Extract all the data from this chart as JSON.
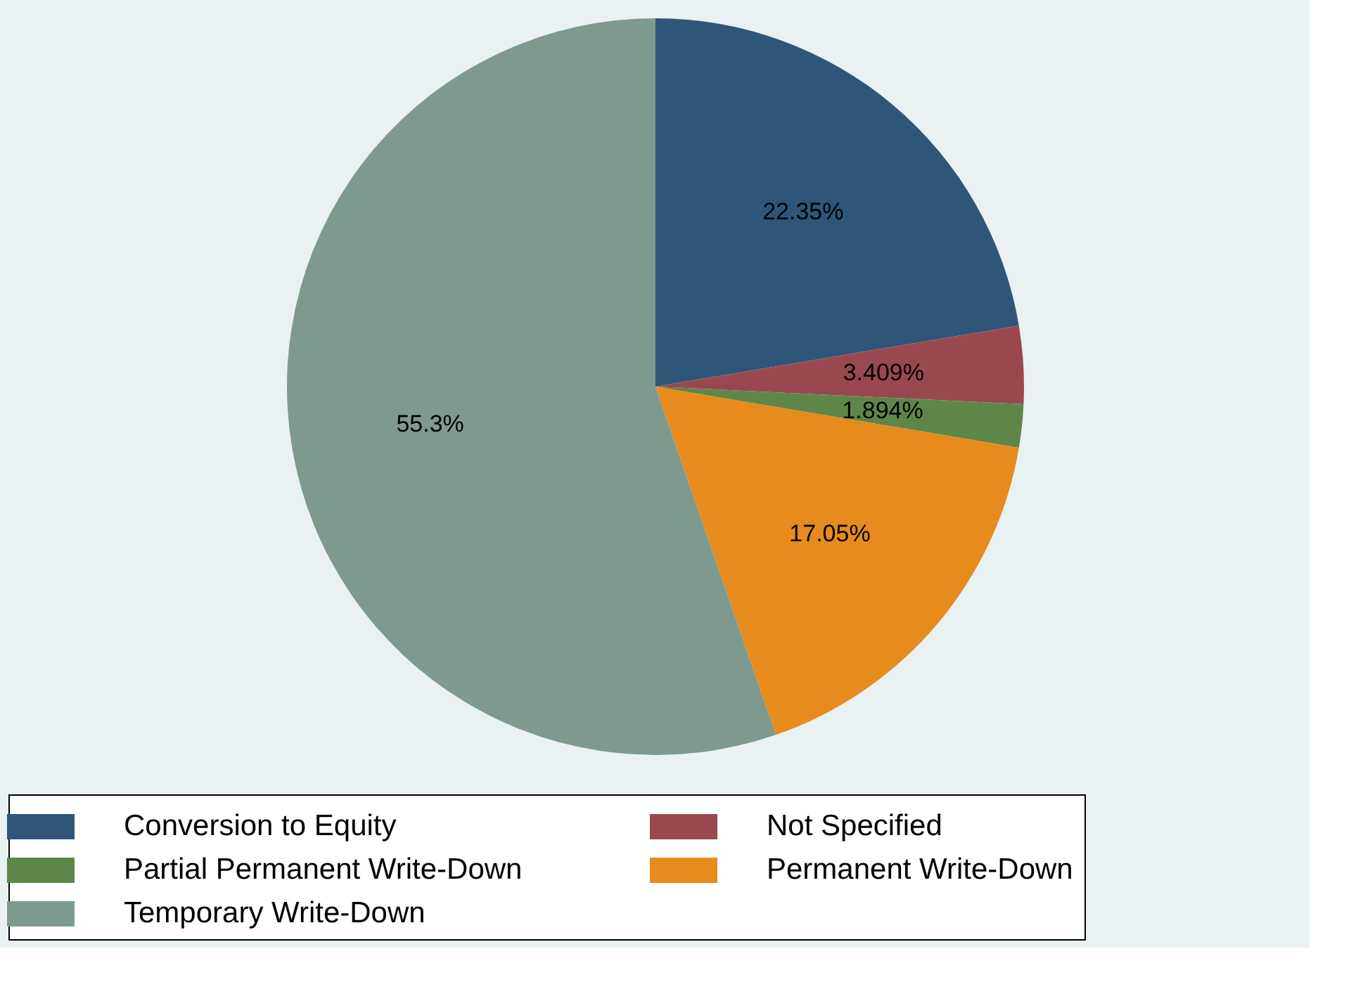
{
  "chart_data": {
    "type": "pie",
    "categories": [
      "Conversion to Equity",
      "Not Specified",
      "Partial Permanent Write-Down",
      "Permanent Write-Down",
      "Temporary Write-Down"
    ],
    "values": [
      22.35,
      3.409,
      1.894,
      17.05,
      55.3
    ],
    "value_labels": [
      "22.35%",
      "3.409%",
      "1.894%",
      "17.05%",
      "55.3%"
    ],
    "colors": [
      "#2f5679",
      "#9a4850",
      "#5f8649",
      "#e78b1c",
      "#7e9a8f"
    ],
    "legend": "bottom"
  }
}
